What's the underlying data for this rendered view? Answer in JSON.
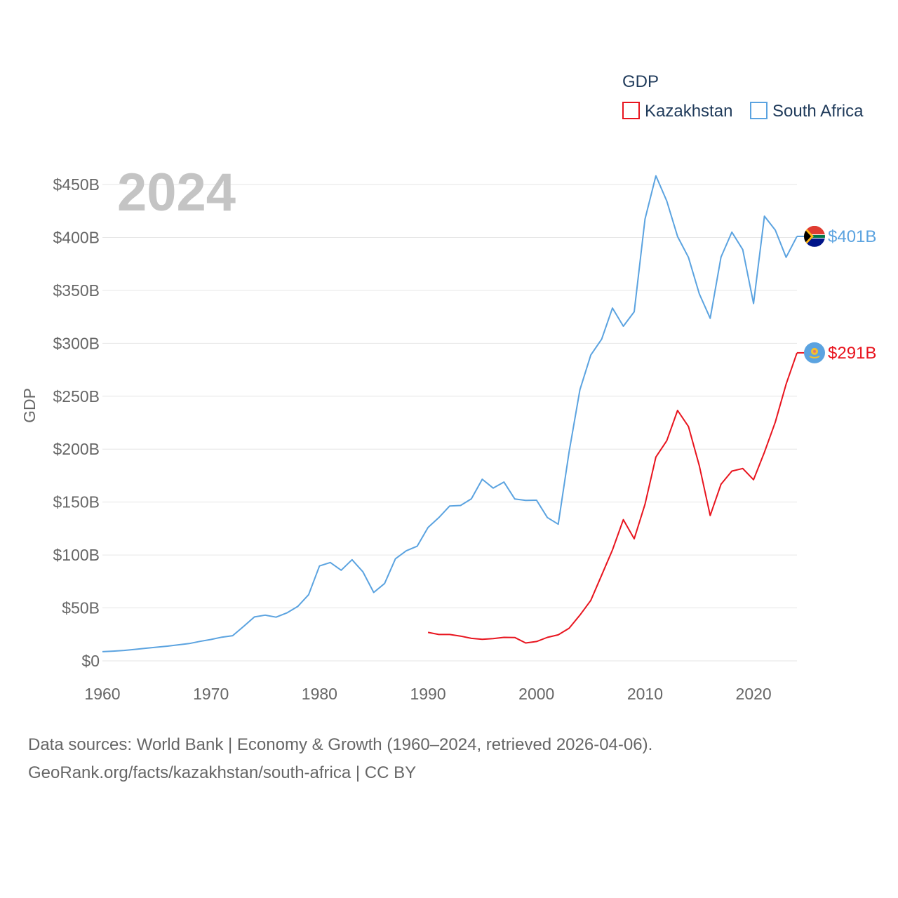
{
  "chart_data": {
    "type": "line",
    "title": "",
    "year_label": "2024",
    "xlabel": "",
    "ylabel": "GDP",
    "xlim": [
      1960,
      2024
    ],
    "ylim": [
      0,
      450
    ],
    "x_ticks": [
      1960,
      1970,
      1980,
      1990,
      2000,
      2010,
      2020
    ],
    "y_ticks": [
      0,
      50,
      100,
      150,
      200,
      250,
      300,
      350,
      400,
      450
    ],
    "y_tick_labels": [
      "$0",
      "$50B",
      "$100B",
      "$150B",
      "$200B",
      "$250B",
      "$300B",
      "$350B",
      "$400B",
      "$450B"
    ],
    "legend": {
      "title": "GDP",
      "position": "top-right",
      "items": [
        "Kazakhstan",
        "South Africa"
      ]
    },
    "series": [
      {
        "name": "South Africa",
        "color": "#5ba3e0",
        "end_label": "$401B",
        "flag_icon": "south-africa-flag-icon",
        "x": [
          1960,
          1961,
          1962,
          1963,
          1964,
          1965,
          1966,
          1967,
          1968,
          1969,
          1970,
          1971,
          1972,
          1973,
          1974,
          1975,
          1976,
          1977,
          1978,
          1979,
          1980,
          1981,
          1982,
          1983,
          1984,
          1985,
          1986,
          1987,
          1988,
          1989,
          1990,
          1991,
          1992,
          1993,
          1994,
          1995,
          1996,
          1997,
          1998,
          1999,
          2000,
          2001,
          2002,
          2003,
          2004,
          2005,
          2006,
          2007,
          2008,
          2009,
          2010,
          2011,
          2012,
          2013,
          2014,
          2015,
          2016,
          2017,
          2018,
          2019,
          2020,
          2021,
          2022,
          2023,
          2024
        ],
        "values": [
          8.7,
          9.2,
          9.9,
          10.9,
          11.9,
          12.9,
          13.9,
          15.2,
          16.4,
          18.4,
          20.2,
          22.4,
          23.8,
          32.5,
          41.5,
          43.2,
          41.3,
          45.3,
          51.4,
          62.5,
          89.7,
          92.9,
          85.6,
          95.6,
          84.1,
          64.6,
          73.1,
          96.5,
          104,
          108.3,
          126,
          135.3,
          146.3,
          146.8,
          153.1,
          171.6,
          163.2,
          168.9,
          152.9,
          151.6,
          151.8,
          135.4,
          129.1,
          197.5,
          256.1,
          288.9,
          303.9,
          333.3,
          316.1,
          329.8,
          417.4,
          458.2,
          434.4,
          400.9,
          381.2,
          346.7,
          323.6,
          381.4,
          405,
          388.5,
          337.6,
          420.1,
          406.9,
          381.2,
          401
        ]
      },
      {
        "name": "Kazakhstan",
        "color": "#e8141e",
        "end_label": "$291B",
        "flag_icon": "kazakhstan-flag-icon",
        "x": [
          1990,
          1991,
          1992,
          1993,
          1994,
          1995,
          1996,
          1997,
          1998,
          1999,
          2000,
          2001,
          2002,
          2003,
          2004,
          2005,
          2006,
          2007,
          2008,
          2009,
          2010,
          2011,
          2012,
          2013,
          2014,
          2015,
          2016,
          2017,
          2018,
          2019,
          2020,
          2021,
          2022,
          2023,
          2024
        ],
        "values": [
          26.9,
          24.9,
          24.9,
          23.4,
          21.3,
          20.4,
          21,
          22.2,
          22.1,
          16.9,
          18.3,
          22.2,
          24.6,
          30.8,
          43.2,
          57.1,
          81,
          104.8,
          133.4,
          115.3,
          148,
          192.6,
          208,
          236.6,
          221.4,
          184.4,
          137.3,
          166.8,
          179.3,
          181.7,
          171.1,
          197.1,
          225.5,
          261.4,
          291
        ]
      }
    ],
    "source_line1": "Data sources: World Bank | Economy & Growth (1960–2024, retrieved 2026-04-06).",
    "source_line2": "GeoRank.org/facts/kazakhstan/south-africa | CC BY"
  }
}
